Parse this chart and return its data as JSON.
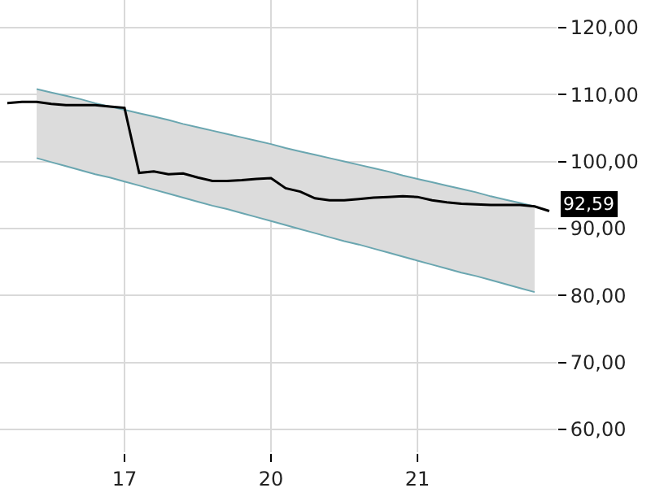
{
  "chart_data": {
    "type": "line",
    "categories": [
      null,
      null,
      null,
      null,
      null,
      null,
      null,
      null,
      "17",
      null,
      null,
      null,
      null,
      null,
      null,
      null,
      null,
      null,
      "20",
      null,
      null,
      null,
      null,
      null,
      null,
      null,
      null,
      null,
      "21",
      null,
      null,
      null,
      null,
      null,
      null,
      null,
      null,
      null
    ],
    "ylim": [
      56.6,
      124.1
    ],
    "yticks": [
      {
        "value": 60,
        "label": "60,00"
      },
      {
        "value": 70,
        "label": "70,00"
      },
      {
        "value": 80,
        "label": "80,00"
      },
      {
        "value": 90,
        "label": "90,00"
      },
      {
        "value": 100,
        "label": "100,00"
      },
      {
        "value": 110,
        "label": "110,00"
      },
      {
        "value": 120,
        "label": "120,00"
      }
    ],
    "grid": true,
    "marker": "none",
    "line_style": "solid",
    "series": [
      {
        "color": "#6aa6b0",
        "values": [
          null,
          null,
          100.5,
          99.9,
          99.3,
          98.7,
          98.1,
          97.6,
          97.0,
          96.4,
          95.8,
          95.2,
          94.6,
          94.0,
          93.4,
          92.9,
          92.3,
          91.7,
          91.1,
          90.5,
          89.9,
          89.3,
          88.7,
          88.1,
          87.6,
          87.0,
          86.4,
          85.8,
          85.2,
          84.6,
          84.0,
          83.4,
          82.9,
          82.3,
          81.7,
          81.1,
          80.5,
          null
        ]
      },
      {
        "color": "#6aa6b0",
        "values": [
          null,
          null,
          110.8,
          110.3,
          109.8,
          109.3,
          108.7,
          108.2,
          107.7,
          107.2,
          106.7,
          106.2,
          105.6,
          105.1,
          104.6,
          104.1,
          103.6,
          103.1,
          102.6,
          102.0,
          101.5,
          101.0,
          100.5,
          100.0,
          99.5,
          99.0,
          98.5,
          97.9,
          97.4,
          96.9,
          96.4,
          95.9,
          95.4,
          94.8,
          94.3,
          93.8,
          93.3,
          null
        ]
      },
      {
        "color": "#dcdcdc",
        "values": [
          null,
          null,
          null,
          null,
          null,
          null,
          null,
          null,
          null,
          null,
          null,
          null,
          null,
          null,
          null,
          null,
          null,
          null,
          null,
          null,
          null,
          null,
          null,
          null,
          null,
          null,
          null,
          null,
          null,
          null,
          null,
          null,
          null,
          null,
          null,
          null,
          null,
          null
        ],
        "lower": [
          null,
          null,
          100.5,
          99.9,
          99.3,
          98.7,
          98.1,
          97.6,
          97.0,
          96.4,
          95.8,
          95.2,
          94.6,
          94.0,
          93.4,
          92.9,
          92.3,
          91.7,
          91.1,
          90.5,
          89.9,
          89.3,
          88.7,
          88.1,
          87.6,
          87.0,
          86.4,
          85.8,
          85.2,
          84.6,
          84.0,
          83.4,
          82.9,
          82.3,
          81.7,
          81.1,
          80.5,
          null
        ],
        "upper": [
          null,
          null,
          110.8,
          110.3,
          109.8,
          109.3,
          108.7,
          108.2,
          107.7,
          107.2,
          106.7,
          106.2,
          105.6,
          105.1,
          104.6,
          104.1,
          103.6,
          103.1,
          102.6,
          102.0,
          101.5,
          101.0,
          100.5,
          100.0,
          99.5,
          99.0,
          98.5,
          97.9,
          97.4,
          96.9,
          96.4,
          95.9,
          95.4,
          94.8,
          94.3,
          93.8,
          93.3,
          null
        ]
      },
      {
        "color": "#000000",
        "values": [
          108.7,
          108.9,
          108.9,
          108.6,
          108.4,
          108.4,
          108.4,
          108.2,
          108.0,
          98.3,
          98.5,
          98.1,
          98.2,
          97.6,
          97.1,
          97.1,
          97.2,
          97.4,
          97.5,
          96.0,
          95.5,
          94.5,
          94.2,
          94.2,
          94.4,
          94.6,
          94.7,
          94.8,
          94.7,
          94.2,
          93.9,
          93.7,
          93.6,
          93.5,
          93.5,
          93.5,
          93.3,
          92.59
        ]
      }
    ],
    "annotations": [
      "92,59"
    ]
  }
}
